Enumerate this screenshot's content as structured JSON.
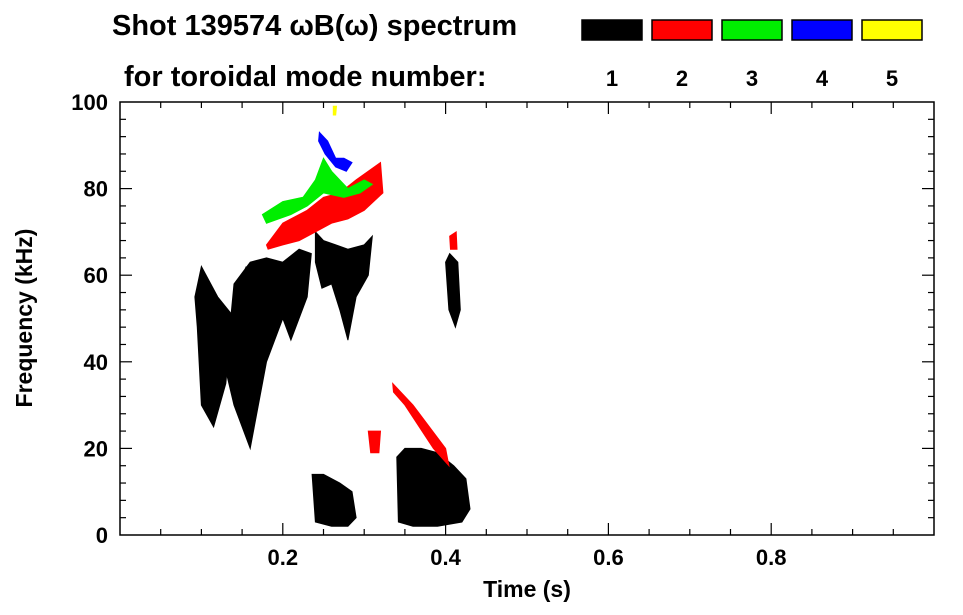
{
  "chart_data": {
    "type": "heatmap",
    "title": "Shot 139574 ωB(ω) spectrum",
    "subtitle": "for toroidal mode number:",
    "xlabel": "Time (s)",
    "ylabel": "Frequency (kHz)",
    "xlim": [
      0.0,
      1.0
    ],
    "ylim": [
      0,
      100
    ],
    "x_ticks": [
      0.2,
      0.4,
      0.6,
      0.8
    ],
    "x_tick_labels": [
      "0.2",
      "0.4",
      "0.6",
      "0.8"
    ],
    "y_ticks": [
      0,
      20,
      40,
      60,
      80,
      100
    ],
    "y_tick_labels": [
      "0",
      "20",
      "40",
      "60",
      "80",
      "100"
    ],
    "grid": false,
    "legend_position": "top-right",
    "series": [
      {
        "name": "1",
        "color": "#000000"
      },
      {
        "name": "2",
        "color": "#ff0000"
      },
      {
        "name": "3",
        "color": "#00ee00"
      },
      {
        "name": "4",
        "color": "#0000ff"
      },
      {
        "name": "5",
        "color": "#ffff00"
      }
    ],
    "regions": [
      {
        "series": "1",
        "points": [
          [
            0.095,
            48
          ],
          [
            0.1,
            30
          ],
          [
            0.115,
            25
          ],
          [
            0.13,
            35
          ],
          [
            0.14,
            55
          ],
          [
            0.155,
            62
          ],
          [
            0.15,
            48
          ],
          [
            0.12,
            55
          ],
          [
            0.1,
            62
          ],
          [
            0.092,
            55
          ]
        ]
      },
      {
        "series": "1",
        "points": [
          [
            0.13,
            38
          ],
          [
            0.14,
            30
          ],
          [
            0.16,
            20
          ],
          [
            0.18,
            40
          ],
          [
            0.2,
            50
          ],
          [
            0.21,
            45
          ],
          [
            0.23,
            55
          ],
          [
            0.235,
            65
          ],
          [
            0.22,
            66
          ],
          [
            0.2,
            63
          ],
          [
            0.18,
            64
          ],
          [
            0.16,
            63
          ],
          [
            0.14,
            58
          ]
        ]
      },
      {
        "series": "1",
        "points": [
          [
            0.24,
            70
          ],
          [
            0.25,
            68
          ],
          [
            0.265,
            67
          ],
          [
            0.28,
            66
          ],
          [
            0.3,
            67
          ],
          [
            0.31,
            69
          ],
          [
            0.305,
            60
          ],
          [
            0.29,
            55
          ],
          [
            0.28,
            45
          ],
          [
            0.27,
            52
          ],
          [
            0.26,
            58
          ],
          [
            0.248,
            57
          ],
          [
            0.24,
            63
          ]
        ]
      },
      {
        "series": "1",
        "points": [
          [
            0.236,
            14
          ],
          [
            0.24,
            3
          ],
          [
            0.26,
            2
          ],
          [
            0.28,
            2
          ],
          [
            0.29,
            4
          ],
          [
            0.285,
            10
          ],
          [
            0.27,
            12
          ],
          [
            0.25,
            14
          ]
        ]
      },
      {
        "series": "1",
        "points": [
          [
            0.34,
            18
          ],
          [
            0.342,
            3
          ],
          [
            0.36,
            2
          ],
          [
            0.39,
            2
          ],
          [
            0.42,
            3
          ],
          [
            0.43,
            6
          ],
          [
            0.425,
            13
          ],
          [
            0.41,
            16
          ],
          [
            0.39,
            19
          ],
          [
            0.37,
            20
          ],
          [
            0.35,
            20
          ]
        ]
      },
      {
        "series": "1",
        "points": [
          [
            0.4,
            63
          ],
          [
            0.405,
            65
          ],
          [
            0.415,
            63
          ],
          [
            0.418,
            52
          ],
          [
            0.412,
            48
          ],
          [
            0.404,
            52
          ]
        ]
      },
      {
        "series": "2",
        "points": [
          [
            0.18,
            67
          ],
          [
            0.2,
            72
          ],
          [
            0.23,
            75
          ],
          [
            0.25,
            78
          ],
          [
            0.27,
            79
          ],
          [
            0.29,
            82
          ],
          [
            0.32,
            86
          ],
          [
            0.323,
            79
          ],
          [
            0.3,
            75
          ],
          [
            0.28,
            73
          ],
          [
            0.26,
            72
          ],
          [
            0.24,
            70
          ],
          [
            0.22,
            68
          ],
          [
            0.2,
            67
          ],
          [
            0.182,
            66
          ]
        ]
      },
      {
        "series": "2",
        "points": [
          [
            0.305,
            24
          ],
          [
            0.32,
            24
          ],
          [
            0.318,
            19
          ],
          [
            0.308,
            19
          ]
        ]
      },
      {
        "series": "2",
        "points": [
          [
            0.335,
            35
          ],
          [
            0.36,
            30
          ],
          [
            0.4,
            20
          ],
          [
            0.404,
            16
          ],
          [
            0.385,
            20
          ],
          [
            0.35,
            30
          ],
          [
            0.336,
            33
          ]
        ]
      },
      {
        "series": "2",
        "points": [
          [
            0.405,
            69
          ],
          [
            0.413,
            70
          ],
          [
            0.414,
            66
          ],
          [
            0.406,
            66
          ]
        ]
      },
      {
        "series": "3",
        "points": [
          [
            0.175,
            74
          ],
          [
            0.2,
            77
          ],
          [
            0.225,
            78
          ],
          [
            0.24,
            82
          ],
          [
            0.25,
            87
          ],
          [
            0.26,
            84
          ],
          [
            0.28,
            80
          ],
          [
            0.3,
            82
          ],
          [
            0.31,
            81
          ],
          [
            0.295,
            79
          ],
          [
            0.275,
            78
          ],
          [
            0.25,
            79
          ],
          [
            0.23,
            76
          ],
          [
            0.21,
            74
          ],
          [
            0.18,
            72
          ]
        ]
      },
      {
        "series": "4",
        "points": [
          [
            0.245,
            93
          ],
          [
            0.255,
            91
          ],
          [
            0.265,
            87
          ],
          [
            0.275,
            87
          ],
          [
            0.285,
            86
          ],
          [
            0.278,
            84
          ],
          [
            0.265,
            85
          ],
          [
            0.252,
            88
          ],
          [
            0.244,
            91
          ]
        ]
      },
      {
        "series": "5",
        "points": [
          [
            0.262,
            99
          ],
          [
            0.266,
            99
          ],
          [
            0.265,
            97
          ],
          [
            0.262,
            97
          ]
        ]
      }
    ]
  }
}
